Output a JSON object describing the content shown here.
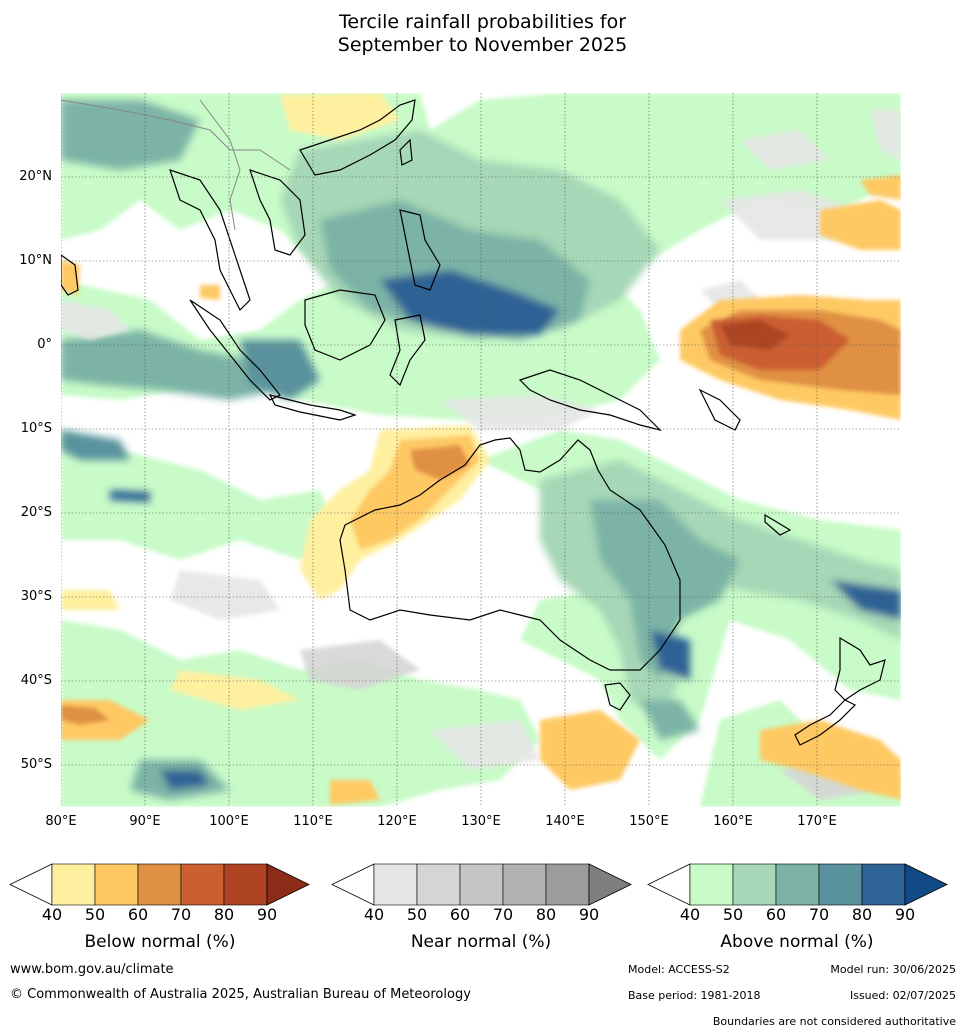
{
  "title": {
    "line1": "Tercile rainfall probabilities for",
    "line2": "September to November 2025"
  },
  "map": {
    "lat_ticks": [
      "20°N",
      "10°N",
      "0°",
      "10°S",
      "20°S",
      "30°S",
      "40°S",
      "50°S"
    ],
    "lon_ticks": [
      "80°E",
      "90°E",
      "100°E",
      "110°E",
      "120°E",
      "130°E",
      "140°E",
      "150°E",
      "160°E",
      "170°E"
    ],
    "lat_values": [
      20,
      10,
      0,
      -10,
      -20,
      -30,
      -40,
      -50
    ],
    "lon_values": [
      80,
      90,
      100,
      110,
      120,
      130,
      140,
      150,
      160,
      170
    ],
    "extent": {
      "lon": [
        80,
        180
      ],
      "lat": [
        -55,
        30
      ]
    },
    "grid": true,
    "colors": {
      "land_outline": "#000000",
      "grid": "#555555",
      "background": "#ffffff"
    }
  },
  "legends": [
    {
      "name": "Below normal (%)",
      "ticks": [
        "40",
        "50",
        "60",
        "70",
        "80",
        "90"
      ],
      "colors": [
        "#fff0a0",
        "#fec964",
        "#e09043",
        "#cb5f30",
        "#ae4423",
        "#8b2b18"
      ]
    },
    {
      "name": "Near normal (%)",
      "ticks": [
        "40",
        "50",
        "60",
        "70",
        "80",
        "90"
      ],
      "colors": [
        "#e6e6e6",
        "#d5d5d5",
        "#c5c5c5",
        "#b2b2b2",
        "#9c9c9c",
        "#7e7e7e"
      ]
    },
    {
      "name": "Above normal (%)",
      "ticks": [
        "40",
        "50",
        "60",
        "70",
        "80",
        "90"
      ],
      "colors": [
        "#c8fbc8",
        "#a6d7b6",
        "#7cb3a6",
        "#5a939e",
        "#2f6295",
        "#124a85"
      ]
    }
  ],
  "footer": {
    "website": "www.bom.gov.au/climate",
    "copyright": "© Commonwealth of Australia 2025, Australian Bureau of Meteorology",
    "model": "Model: ACCESS-S2",
    "model_run": "Model run: 30/06/2025",
    "base_period": "Base period: 1981-2018",
    "issued": "Issued: 02/07/2025",
    "disclaimer": "Boundaries are not considered authoritative"
  }
}
